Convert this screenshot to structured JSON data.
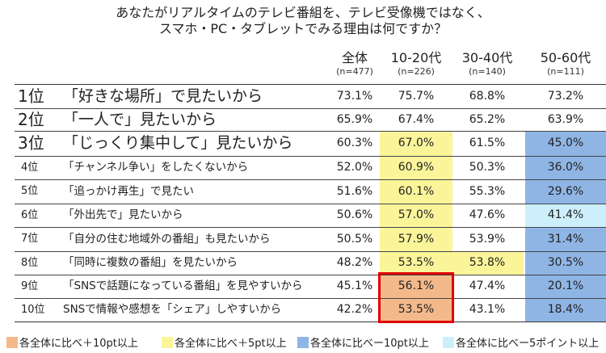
{
  "title": {
    "line1": "あなたがリアルタイムのテレビ番組を、テレビ受像機ではなく、",
    "line2": "スマホ・PC・タブレットでみる理由は何ですか？"
  },
  "colors": {
    "orange": "#f4b98a",
    "yellow": "#fbf59a",
    "blue": "#8fb5e5",
    "lightblue": "#cdeffb",
    "highlight_box": "#e00000"
  },
  "legend": [
    {
      "color": "orange",
      "label": "各全体に比べ＋10pt以上"
    },
    {
      "color": "yellow",
      "label": "各全体に比べ＋5pt以上"
    },
    {
      "color": "blue",
      "label": "各全体に比べー10pt以上"
    },
    {
      "color": "lightblue",
      "label": "各全体に比べー5ポイント以上"
    }
  ],
  "chart_data": {
    "type": "table",
    "columns": [
      {
        "label": "全体",
        "n": "(n=477)"
      },
      {
        "label": "10-20代",
        "n": "(n=226)"
      },
      {
        "label": "30-40代",
        "n": "(n=140)"
      },
      {
        "label": "50-60代",
        "n": "(n=111)"
      }
    ],
    "rows": [
      {
        "rank": "1位",
        "label": "「好きな場所」で見たいから",
        "values": [
          "73.1%",
          "75.7%",
          "68.8%",
          "73.2%"
        ],
        "fills": [
          "",
          "",
          "",
          ""
        ]
      },
      {
        "rank": "2位",
        "label": "「一人で」見たいから",
        "values": [
          "65.9%",
          "67.4%",
          "65.2%",
          "63.9%"
        ],
        "fills": [
          "",
          "",
          "",
          ""
        ]
      },
      {
        "rank": "3位",
        "label": "「じっくり集中して」見たいから",
        "values": [
          "60.3%",
          "67.0%",
          "61.5%",
          "45.0%"
        ],
        "fills": [
          "",
          "yellow",
          "",
          "blue"
        ]
      },
      {
        "rank": "4位",
        "label": "「チャンネル争い」をしたくないから",
        "values": [
          "52.0%",
          "60.9%",
          "50.3%",
          "36.0%"
        ],
        "fills": [
          "",
          "yellow",
          "",
          "blue"
        ]
      },
      {
        "rank": "5位",
        "label": "「追っかけ再生」で見たい",
        "values": [
          "51.6%",
          "60.1%",
          "55.3%",
          "29.6%"
        ],
        "fills": [
          "",
          "yellow",
          "",
          "blue"
        ]
      },
      {
        "rank": "6位",
        "label": "「外出先で」見たいから",
        "values": [
          "50.6%",
          "57.0%",
          "47.6%",
          "41.4%"
        ],
        "fills": [
          "",
          "yellow",
          "",
          "lightblue"
        ]
      },
      {
        "rank": "7位",
        "label": "「自分の住む地域外の番組」も見たいから",
        "values": [
          "50.5%",
          "57.9%",
          "53.9%",
          "31.4%"
        ],
        "fills": [
          "",
          "yellow",
          "",
          "blue"
        ]
      },
      {
        "rank": "8位",
        "label": "「同時に複数の番組」を見たいから",
        "values": [
          "48.2%",
          "53.5%",
          "53.8%",
          "30.5%"
        ],
        "fills": [
          "",
          "yellow",
          "yellow",
          "blue"
        ]
      },
      {
        "rank": "9位",
        "label": "「SNSで話題になっている番組」を見やすいから",
        "values": [
          "45.1%",
          "56.1%",
          "47.4%",
          "20.1%"
        ],
        "fills": [
          "",
          "orange",
          "",
          "blue"
        ]
      },
      {
        "rank": "10位",
        "label": "SNSで情報や感想を「シェア」しやすいから",
        "values": [
          "42.2%",
          "53.5%",
          "43.1%",
          "18.4%"
        ],
        "fills": [
          "",
          "orange",
          "",
          "blue"
        ]
      }
    ],
    "highlighted": {
      "column": 1,
      "rows": [
        8,
        9
      ]
    }
  }
}
